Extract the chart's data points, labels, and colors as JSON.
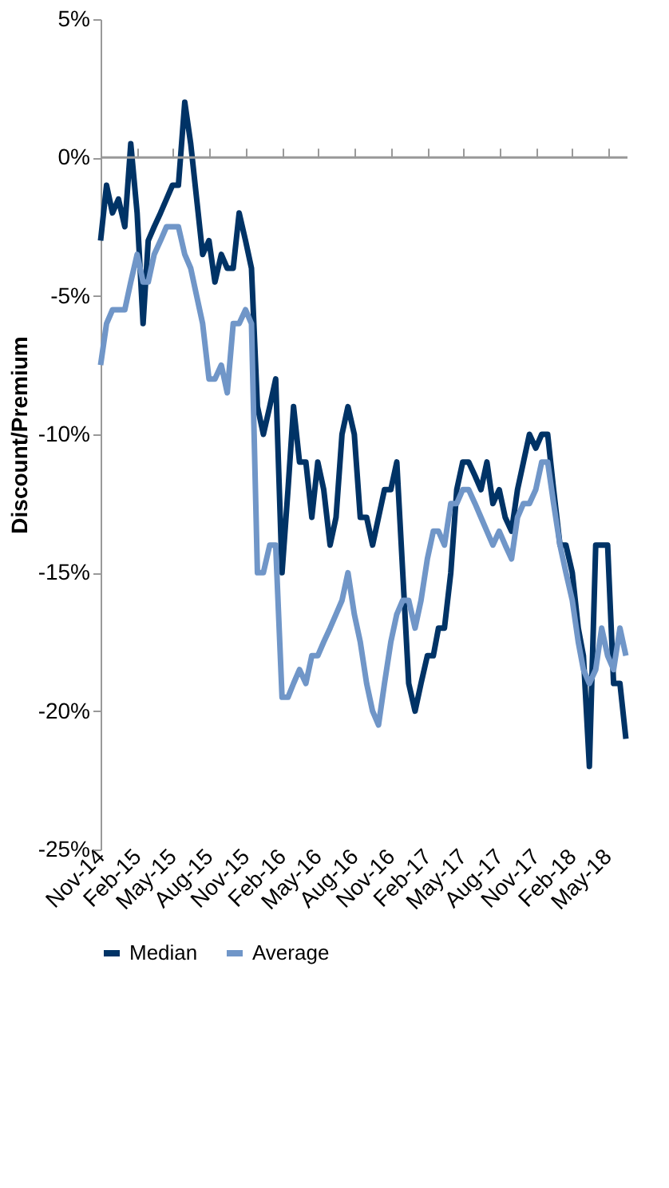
{
  "chart_data": {
    "type": "line",
    "xlabel": null,
    "ylabel": "Discount/Premium",
    "x": [
      "2014-11-01",
      "2014-11-16",
      "2014-12-01",
      "2014-12-16",
      "2015-01-01",
      "2015-01-16",
      "2015-02-01",
      "2015-02-16",
      "2015-03-01",
      "2015-03-16",
      "2015-04-01",
      "2015-04-16",
      "2015-05-01",
      "2015-05-16",
      "2015-06-01",
      "2015-06-16",
      "2015-07-01",
      "2015-07-16",
      "2015-08-01",
      "2015-08-16",
      "2015-09-01",
      "2015-09-16",
      "2015-10-01",
      "2015-10-16",
      "2015-11-01",
      "2015-11-16",
      "2015-12-01",
      "2015-12-16",
      "2016-01-01",
      "2016-01-16",
      "2016-02-01",
      "2016-02-16",
      "2016-03-01",
      "2016-03-16",
      "2016-04-01",
      "2016-04-16",
      "2016-05-01",
      "2016-05-16",
      "2016-06-01",
      "2016-06-16",
      "2016-07-01",
      "2016-07-16",
      "2016-08-01",
      "2016-08-16",
      "2016-09-01",
      "2016-09-16",
      "2016-10-01",
      "2016-10-16",
      "2016-11-01",
      "2016-11-16",
      "2016-12-01",
      "2016-12-16",
      "2017-01-01",
      "2017-01-16",
      "2017-02-01",
      "2017-02-16",
      "2017-03-01",
      "2017-03-16",
      "2017-04-01",
      "2017-04-16",
      "2017-05-01",
      "2017-05-16",
      "2017-06-01",
      "2017-06-16",
      "2017-07-01",
      "2017-07-16",
      "2017-08-01",
      "2017-08-16",
      "2017-09-01",
      "2017-09-16",
      "2017-10-01",
      "2017-10-16",
      "2017-11-01",
      "2017-11-16",
      "2017-12-01",
      "2017-12-16",
      "2018-01-01",
      "2018-01-16",
      "2018-02-01",
      "2018-02-16",
      "2018-03-01",
      "2018-03-16",
      "2018-04-01",
      "2018-04-16",
      "2018-05-01",
      "2018-05-16",
      "2018-06-01",
      "2018-06-16"
    ],
    "series": [
      {
        "name": "Median",
        "color": "#003366",
        "values": [
          -3,
          -1,
          -2,
          -1.5,
          -2.5,
          0.5,
          -2,
          -6,
          -3,
          -2.5,
          -2,
          -1.5,
          -1,
          -1,
          2,
          0.5,
          -1.5,
          -3.5,
          -3,
          -4.5,
          -3.5,
          -4,
          -4,
          -2,
          -3,
          -4,
          -9,
          -10,
          -9,
          -8,
          -15,
          -12,
          -9,
          -11,
          -11,
          -13,
          -11,
          -12,
          -14,
          -13,
          -10,
          -9,
          -10,
          -13,
          -13,
          -14,
          -13,
          -12,
          -12,
          -11,
          -15,
          -19,
          -20,
          -19,
          -18,
          -18,
          -17,
          -17,
          -15,
          -12,
          -11,
          -11,
          -11.5,
          -12,
          -11,
          -12.5,
          -12,
          -13,
          -13.5,
          -12,
          -11,
          -10,
          -10.5,
          -10,
          -10,
          -12,
          -14,
          -14,
          -15,
          -17,
          -18,
          -22,
          -14,
          -14,
          -14,
          -19,
          -19,
          -21
        ]
      },
      {
        "name": "Average",
        "color": "#7096c8",
        "values": [
          -7.5,
          -6,
          -5.5,
          -5.5,
          -5.5,
          -4.5,
          -3.5,
          -4.5,
          -4.5,
          -3.5,
          -3,
          -2.5,
          -2.5,
          -2.5,
          -3.5,
          -4,
          -5,
          -6,
          -8,
          -8,
          -7.5,
          -8.5,
          -6,
          -6,
          -5.5,
          -6,
          -15,
          -15,
          -14,
          -14,
          -19.5,
          -19.5,
          -19,
          -18.5,
          -19,
          -18,
          -18,
          -17.5,
          -17,
          -16.5,
          -16,
          -15,
          -16.5,
          -17.5,
          -19,
          -20,
          -20.5,
          -19,
          -17.5,
          -16.5,
          -16,
          -16,
          -17,
          -16,
          -14.5,
          -13.5,
          -13.5,
          -14,
          -12.5,
          -12.5,
          -12,
          -12,
          -12.5,
          -13,
          -13.5,
          -14,
          -13.5,
          -14,
          -14.5,
          -13,
          -12.5,
          -12.5,
          -12,
          -11,
          -11,
          -12.5,
          -14,
          -15,
          -16,
          -17.5,
          -18.5,
          -19,
          -18.5,
          -17,
          -18,
          -18.5,
          -17,
          -18
        ]
      }
    ],
    "xlim": [
      "2014-11-01",
      "2018-06-20"
    ],
    "xticks": [
      {
        "value": "2014-11-01",
        "label": "Nov-14"
      },
      {
        "value": "2015-02-01",
        "label": "Feb-15"
      },
      {
        "value": "2015-05-01",
        "label": "May-15"
      },
      {
        "value": "2015-08-01",
        "label": "Aug-15"
      },
      {
        "value": "2015-11-01",
        "label": "Nov-15"
      },
      {
        "value": "2016-02-01",
        "label": "Feb-16"
      },
      {
        "value": "2016-05-01",
        "label": "May-16"
      },
      {
        "value": "2016-08-01",
        "label": "Aug-16"
      },
      {
        "value": "2016-11-01",
        "label": "Nov-16"
      },
      {
        "value": "2017-02-01",
        "label": "Feb-17"
      },
      {
        "value": "2017-05-01",
        "label": "May-17"
      },
      {
        "value": "2017-08-01",
        "label": "Aug-17"
      },
      {
        "value": "2017-11-01",
        "label": "Nov-17"
      },
      {
        "value": "2018-02-01",
        "label": "Feb-18"
      },
      {
        "value": "2018-05-01",
        "label": "May-18"
      }
    ],
    "ylim": [
      -25,
      5
    ],
    "yticks": [
      {
        "value": 5,
        "label": "5%"
      },
      {
        "value": 0,
        "label": "0%"
      },
      {
        "value": -5,
        "label": "-5%"
      },
      {
        "value": -10,
        "label": "-10%"
      },
      {
        "value": -15,
        "label": "-15%"
      },
      {
        "value": -20,
        "label": "-20%"
      },
      {
        "value": -25,
        "label": "-25%"
      }
    ],
    "ref_lines": [
      {
        "axis": "y",
        "value": 0,
        "color": "#999999"
      }
    ],
    "grid": false,
    "legend": "bottom",
    "marker": "none",
    "line_style": "solid"
  }
}
